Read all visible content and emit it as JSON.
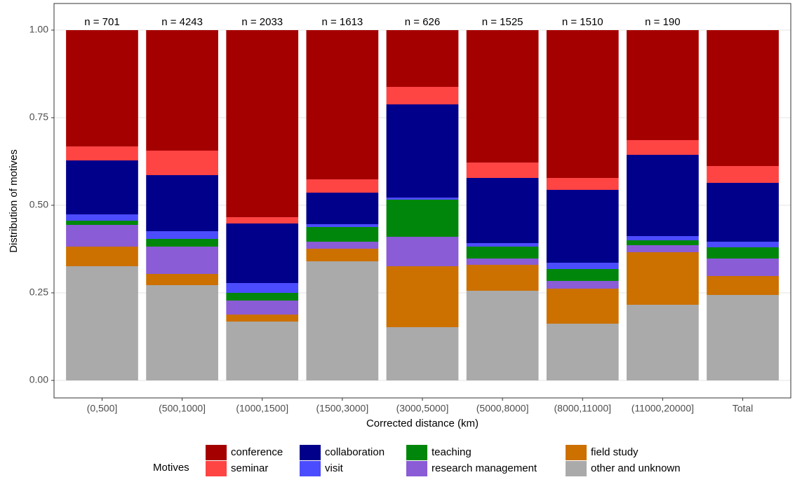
{
  "chart_data": {
    "type": "stacked_bar",
    "x_label": "Corrected distance (km)",
    "y_label": "Distribution of motives",
    "legend_title": "Motives",
    "legend_position": "bottom",
    "grid": true,
    "categories": [
      "(0,500]",
      "(500,1000]",
      "(1000,1500]",
      "(1500,3000]",
      "(3000,5000]",
      "(5000,8000]",
      "(8000,11000]",
      "(11000,20000]",
      "Total"
    ],
    "annotations": [
      "n = 701",
      "n = 4243",
      "n = 2033",
      "n = 1613",
      "n = 626",
      "n = 1525",
      "n = 1510",
      "n = 190",
      null
    ],
    "ylim": [
      -0.05,
      1.076
    ],
    "yticks": [
      {
        "value": 0,
        "label": "0.00"
      },
      {
        "value": 0.25,
        "label": "0.25"
      },
      {
        "value": 0.5,
        "label": "0.50"
      },
      {
        "value": 0.75,
        "label": "0.75"
      },
      {
        "value": 1,
        "label": "1.00"
      }
    ],
    "series": [
      {
        "name": "conference",
        "color": "#a50000",
        "values": [
          0.332,
          0.344,
          0.534,
          0.426,
          0.162,
          0.378,
          0.422,
          0.314,
          0.388
        ]
      },
      {
        "name": "seminar",
        "color": "#ff4444",
        "values": [
          0.04,
          0.07,
          0.018,
          0.038,
          0.05,
          0.044,
          0.034,
          0.042,
          0.048
        ]
      },
      {
        "name": "collaboration",
        "color": "#00008b",
        "values": [
          0.154,
          0.16,
          0.17,
          0.09,
          0.266,
          0.186,
          0.208,
          0.232,
          0.168
        ]
      },
      {
        "name": "visit",
        "color": "#4c4cff",
        "values": [
          0.018,
          0.022,
          0.028,
          0.008,
          0.006,
          0.01,
          0.018,
          0.012,
          0.016
        ]
      },
      {
        "name": "teaching",
        "color": "#00870b",
        "values": [
          0.012,
          0.022,
          0.022,
          0.042,
          0.106,
          0.034,
          0.034,
          0.014,
          0.032
        ]
      },
      {
        "name": "research management",
        "color": "#8a5cd6",
        "values": [
          0.062,
          0.078,
          0.04,
          0.02,
          0.084,
          0.018,
          0.022,
          0.02,
          0.05
        ]
      },
      {
        "name": "field study",
        "color": "#cc7000",
        "values": [
          0.056,
          0.032,
          0.02,
          0.036,
          0.174,
          0.074,
          0.1,
          0.15,
          0.054
        ]
      },
      {
        "name": "other and unknown",
        "color": "#aaaaaa",
        "values": [
          0.326,
          0.272,
          0.168,
          0.34,
          0.152,
          0.256,
          0.162,
          0.216,
          0.244
        ]
      }
    ]
  }
}
